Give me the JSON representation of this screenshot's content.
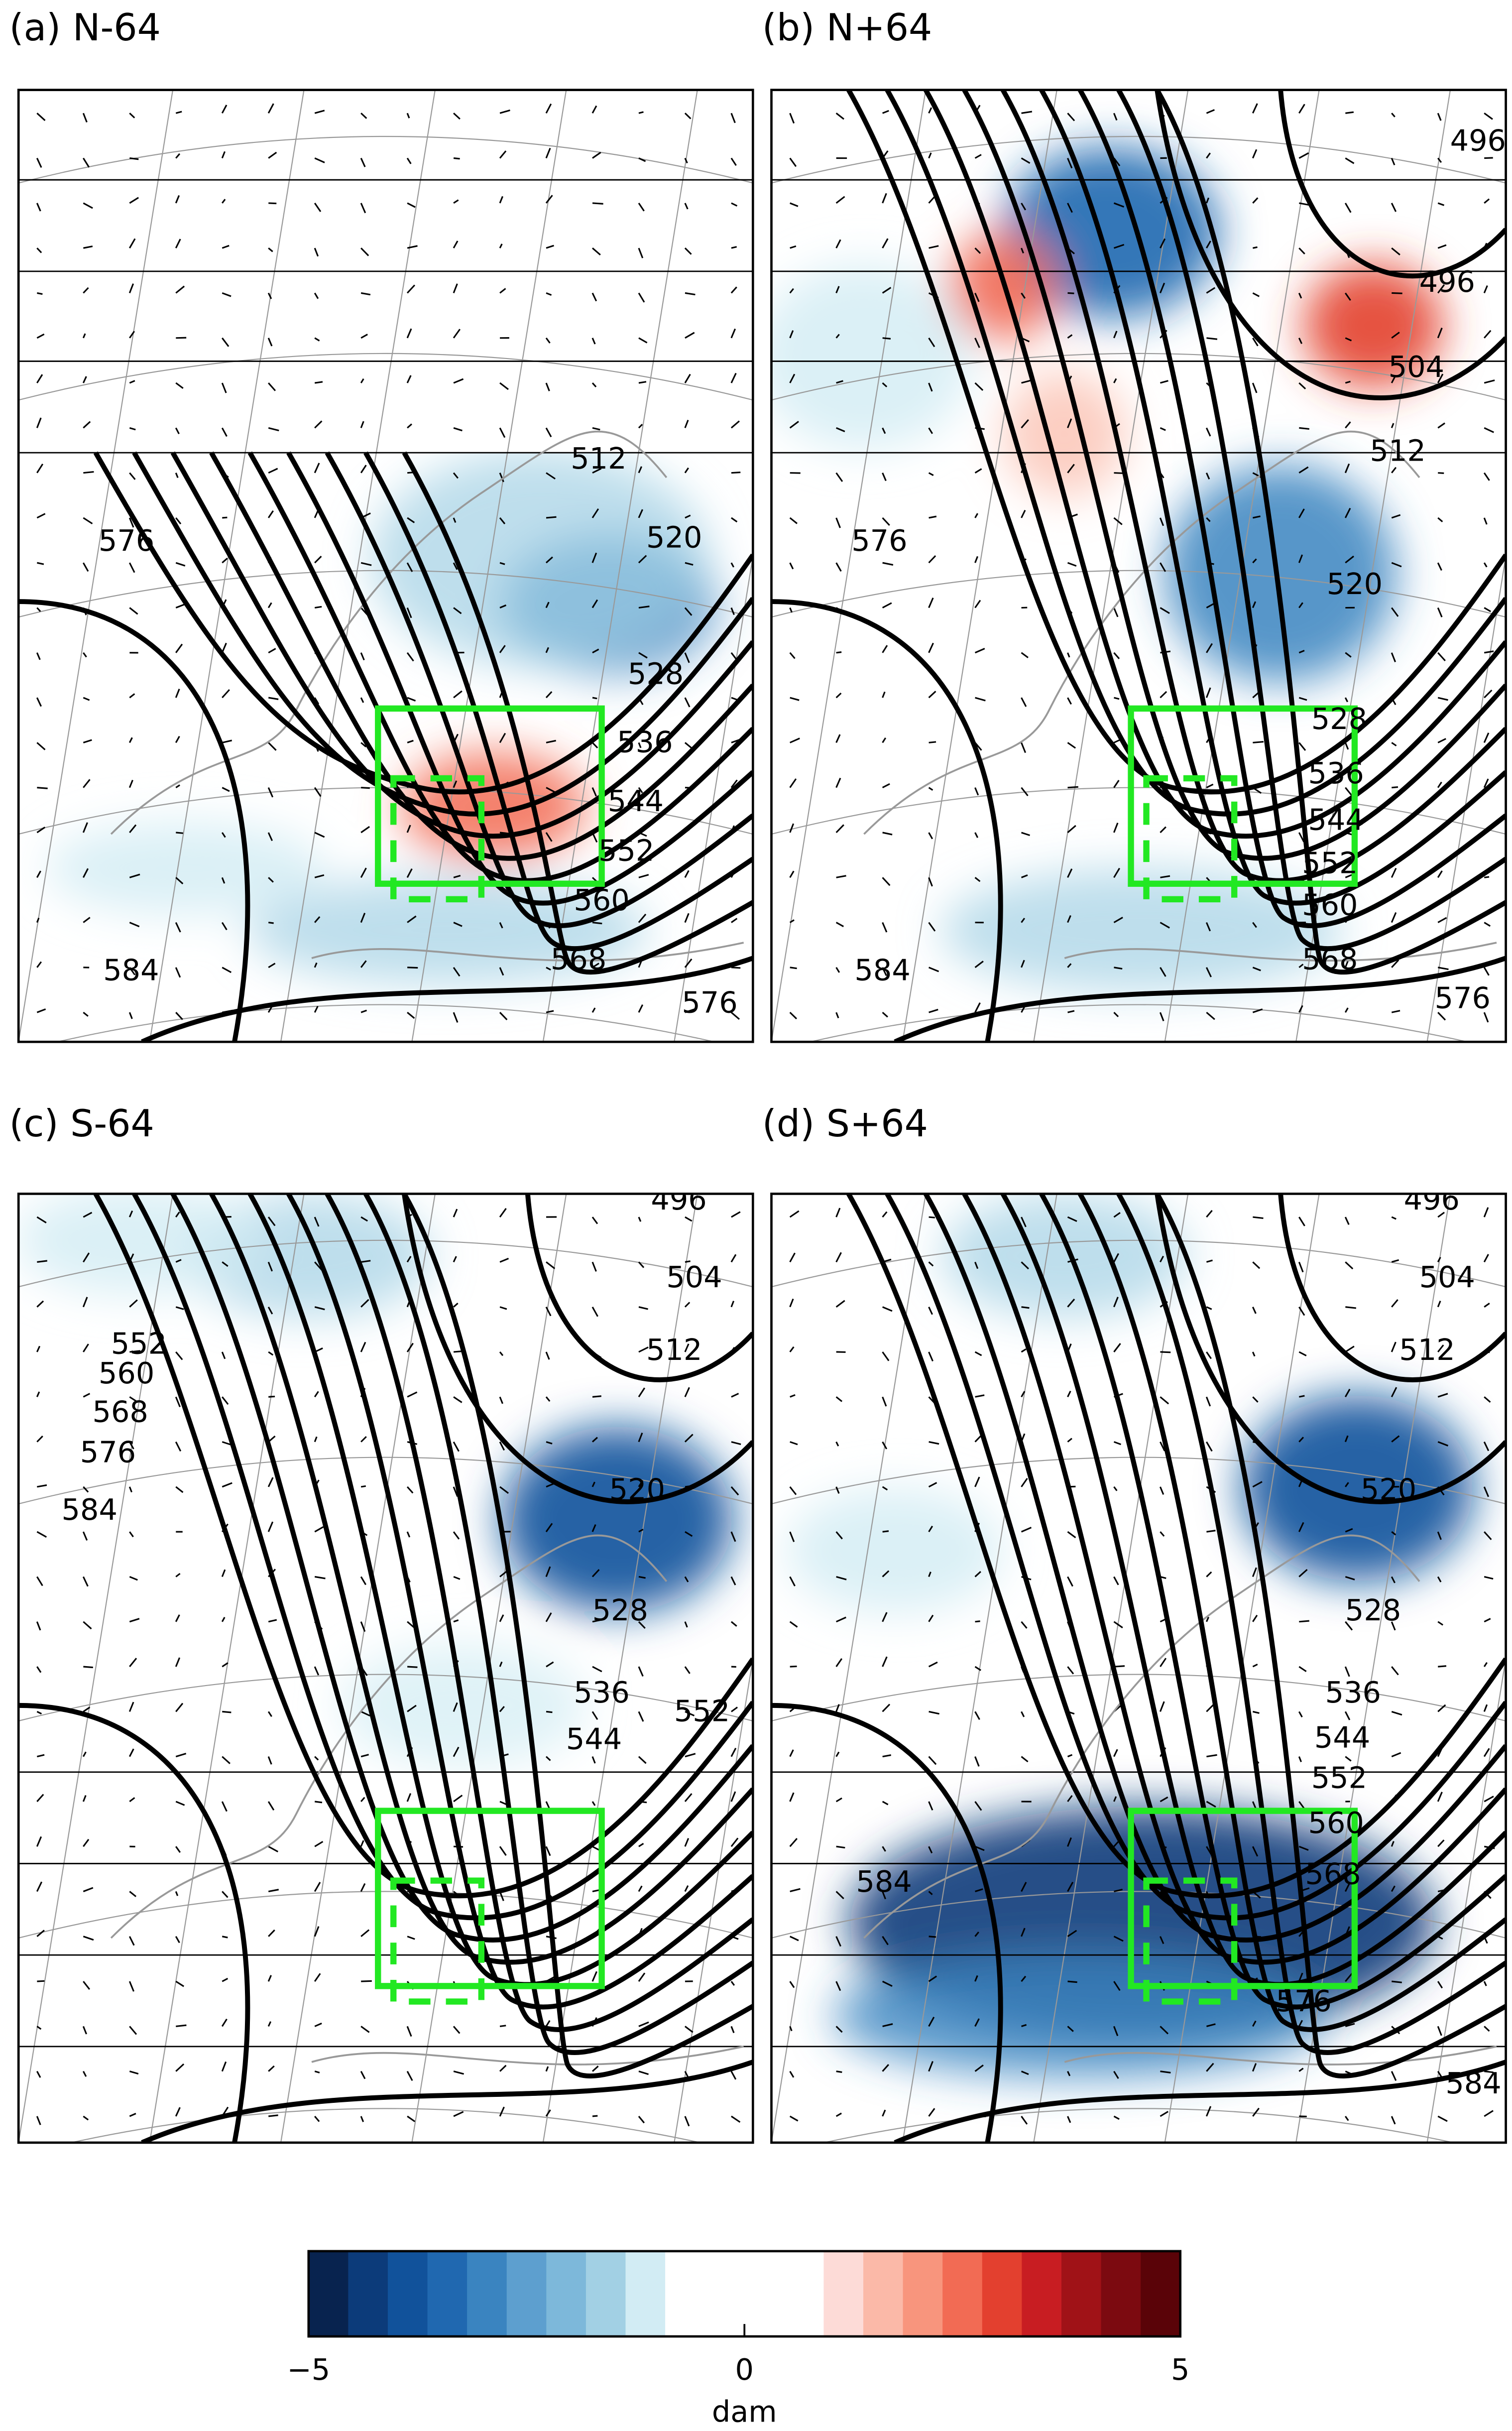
{
  "panels": [
    {
      "title": "(a) N-64",
      "contour_labels": [
        512,
        576,
        520,
        528,
        536,
        544,
        552,
        560,
        568,
        584,
        576
      ]
    },
    {
      "title": "(b) N+64",
      "contour_labels": [
        496,
        496,
        504,
        512,
        576,
        520,
        528,
        536,
        544,
        552,
        560,
        568,
        584,
        576
      ]
    },
    {
      "title": "(c) S-64",
      "contour_labels": [
        496,
        504,
        512,
        552,
        560,
        568,
        576,
        584,
        520,
        528,
        536,
        544,
        552
      ]
    },
    {
      "title": "(d) S+64",
      "contour_labels": [
        496,
        504,
        512,
        520,
        528,
        536,
        544,
        552,
        560,
        568,
        584,
        576,
        584
      ]
    }
  ],
  "colorbar": {
    "range": [
      -5,
      5
    ],
    "ticks": [
      {
        "value": -5,
        "label": "−5"
      },
      0,
      5
    ],
    "label": "dam",
    "colors": [
      "#08234f",
      "#0c3b7a",
      "#11529b",
      "#2068b0",
      "#3a84c0",
      "#5d9fcf",
      "#7db8da",
      "#a2d0e4",
      "#d2ecf4",
      "#ffffff",
      "#ffffff",
      "#ffffff",
      "#ffffff",
      "#fddbd7",
      "#fbb9a8",
      "#f8957d",
      "#f26b54",
      "#e3402f",
      "#c81d22",
      "#a01217",
      "#7c0a10",
      "#5a0308"
    ]
  }
}
